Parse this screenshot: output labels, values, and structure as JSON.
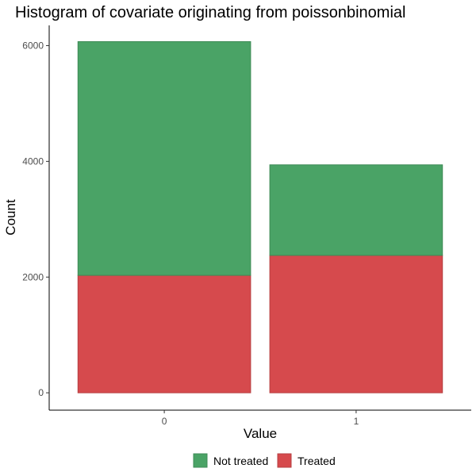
{
  "chart_data": {
    "type": "bar",
    "stacked": true,
    "title": "Histogram of covariate originating from poissonbinomial",
    "xlabel": "Value",
    "ylabel": "Count",
    "categories": [
      "0",
      "1"
    ],
    "ylim": [
      -300,
      6350
    ],
    "yticks": [
      0,
      2000,
      4000,
      6000
    ],
    "series": [
      {
        "name": "Treated",
        "values": [
          2030,
          2375
        ],
        "color": "#d64a4d"
      },
      {
        "name": "Not treated",
        "values": [
          4040,
          1565
        ],
        "color": "#4aa366"
      }
    ],
    "legend": {
      "position": "bottom",
      "order": [
        "Not treated",
        "Treated"
      ]
    },
    "grid": false
  }
}
